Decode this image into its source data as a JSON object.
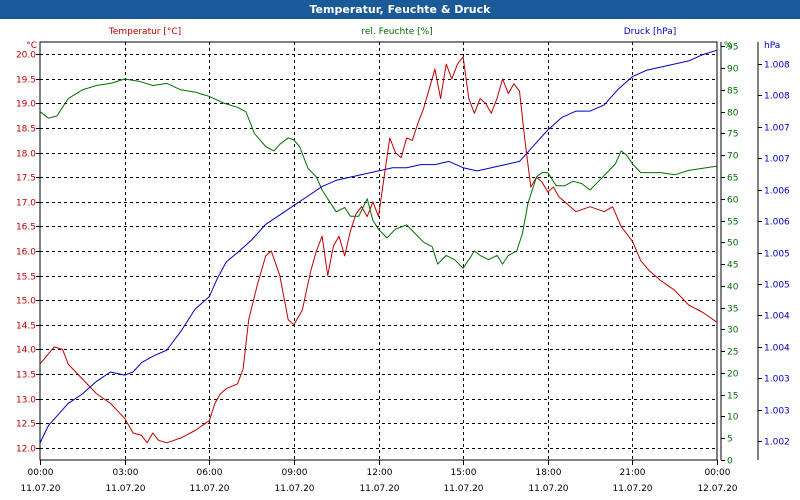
{
  "window": {
    "title": "Temperatur, Feuchte & Druck"
  },
  "chart_data": {
    "type": "line",
    "title": "Temperatur, Feuchte & Druck",
    "colors": {
      "temperature": "#c00000",
      "humidity": "#007000",
      "pressure": "#0000c0",
      "grid": "#000000",
      "title_bar": "#1a5a98"
    },
    "axes": {
      "left": {
        "label": "Temperatur [°C]",
        "unit": "°C",
        "range": [
          11.75,
          20.25
        ],
        "ticks": [
          "12.0",
          "12.5",
          "13.0",
          "13.5",
          "14.0",
          "14.5",
          "15.0",
          "15.5",
          "16.0",
          "16.5",
          "17.0",
          "17.5",
          "18.0",
          "18.5",
          "19.0",
          "19.5",
          "20.0"
        ]
      },
      "middle": {
        "label": "rel. Feuchte [%]",
        "unit": "%",
        "range": [
          0,
          96
        ],
        "ticks": [
          "0",
          "5",
          "10",
          "15",
          "20",
          "25",
          "30",
          "35",
          "40",
          "45",
          "50",
          "55",
          "60",
          "65",
          "70",
          "75",
          "80",
          "85",
          "90",
          "95"
        ]
      },
      "right": {
        "label": "Druck [hPa]",
        "unit": "hPa",
        "range": [
          1001.7,
          1008.35
        ],
        "ticks": [
          "1.002",
          "1.003",
          "1.003",
          "1.004",
          "1.004",
          "1.005",
          "1.005",
          "1.006",
          "1.006",
          "1.007",
          "1.007",
          "1.008",
          "1.008"
        ]
      },
      "x": {
        "range_hours": [
          0,
          24
        ],
        "tick_hours": [
          0,
          3,
          6,
          9,
          12,
          15,
          18,
          21,
          24
        ],
        "tick_labels": [
          [
            "00:00",
            "11.07.20"
          ],
          [
            "03:00",
            "11.07.20"
          ],
          [
            "06:00",
            "11.07.20"
          ],
          [
            "09:00",
            "11.07.20"
          ],
          [
            "12:00",
            "11.07.20"
          ],
          [
            "15:00",
            "11.07.20"
          ],
          [
            "18:00",
            "11.07.20"
          ],
          [
            "21:00",
            "11.07.20"
          ],
          [
            "00:00",
            "12.07.20"
          ]
        ]
      }
    },
    "grid": true,
    "series": [
      {
        "name": "Temperatur",
        "axis": "left",
        "color": "#c00000",
        "points": [
          [
            0,
            13.7
          ],
          [
            0.5,
            14.05
          ],
          [
            0.8,
            14.0
          ],
          [
            1.0,
            13.7
          ],
          [
            1.5,
            13.4
          ],
          [
            2.0,
            13.1
          ],
          [
            2.5,
            12.9
          ],
          [
            3.0,
            12.6
          ],
          [
            3.3,
            12.3
          ],
          [
            3.6,
            12.25
          ],
          [
            3.8,
            12.1
          ],
          [
            4.0,
            12.3
          ],
          [
            4.2,
            12.15
          ],
          [
            4.5,
            12.1
          ],
          [
            5.0,
            12.2
          ],
          [
            5.5,
            12.35
          ],
          [
            6.0,
            12.55
          ],
          [
            6.2,
            12.9
          ],
          [
            6.4,
            13.1
          ],
          [
            6.6,
            13.2
          ],
          [
            7.0,
            13.3
          ],
          [
            7.2,
            13.6
          ],
          [
            7.4,
            14.6
          ],
          [
            7.7,
            15.3
          ],
          [
            8.0,
            15.9
          ],
          [
            8.2,
            16.0
          ],
          [
            8.5,
            15.5
          ],
          [
            8.8,
            14.6
          ],
          [
            9.0,
            14.5
          ],
          [
            9.3,
            14.8
          ],
          [
            9.6,
            15.6
          ],
          [
            9.8,
            16.0
          ],
          [
            10.0,
            16.3
          ],
          [
            10.2,
            15.5
          ],
          [
            10.4,
            16.1
          ],
          [
            10.6,
            16.3
          ],
          [
            10.8,
            15.9
          ],
          [
            11.0,
            16.4
          ],
          [
            11.2,
            16.75
          ],
          [
            11.4,
            16.9
          ],
          [
            11.6,
            16.7
          ],
          [
            11.8,
            17.0
          ],
          [
            12.0,
            16.7
          ],
          [
            12.2,
            17.5
          ],
          [
            12.4,
            18.3
          ],
          [
            12.6,
            18.0
          ],
          [
            12.8,
            17.9
          ],
          [
            13.0,
            18.3
          ],
          [
            13.2,
            18.25
          ],
          [
            13.4,
            18.6
          ],
          [
            13.6,
            18.9
          ],
          [
            13.8,
            19.3
          ],
          [
            14.0,
            19.7
          ],
          [
            14.2,
            19.1
          ],
          [
            14.4,
            19.8
          ],
          [
            14.6,
            19.5
          ],
          [
            14.8,
            19.8
          ],
          [
            15.0,
            19.95
          ],
          [
            15.2,
            19.1
          ],
          [
            15.4,
            18.8
          ],
          [
            15.6,
            19.1
          ],
          [
            15.8,
            19.0
          ],
          [
            16.0,
            18.8
          ],
          [
            16.2,
            19.1
          ],
          [
            16.4,
            19.5
          ],
          [
            16.6,
            19.2
          ],
          [
            16.8,
            19.4
          ],
          [
            17.0,
            19.25
          ],
          [
            17.2,
            18.2
          ],
          [
            17.4,
            17.3
          ],
          [
            17.6,
            17.5
          ],
          [
            17.8,
            17.4
          ],
          [
            18.0,
            17.2
          ],
          [
            18.2,
            17.3
          ],
          [
            18.4,
            17.1
          ],
          [
            18.6,
            17.0
          ],
          [
            19.0,
            16.8
          ],
          [
            19.5,
            16.9
          ],
          [
            20.0,
            16.8
          ],
          [
            20.3,
            16.9
          ],
          [
            20.6,
            16.5
          ],
          [
            21.0,
            16.2
          ],
          [
            21.3,
            15.8
          ],
          [
            21.6,
            15.6
          ],
          [
            22.0,
            15.4
          ],
          [
            22.5,
            15.2
          ],
          [
            23.0,
            14.9
          ],
          [
            23.5,
            14.75
          ],
          [
            24.0,
            14.55
          ]
        ]
      },
      {
        "name": "rel. Feuchte",
        "axis": "middle",
        "color": "#007000",
        "points": [
          [
            0,
            80
          ],
          [
            0.3,
            78.5
          ],
          [
            0.6,
            79
          ],
          [
            1.0,
            83
          ],
          [
            1.5,
            85
          ],
          [
            2.0,
            86
          ],
          [
            2.5,
            86.5
          ],
          [
            3.0,
            87.5
          ],
          [
            3.5,
            87
          ],
          [
            4.0,
            86
          ],
          [
            4.5,
            86.5
          ],
          [
            5.0,
            85
          ],
          [
            5.5,
            84.5
          ],
          [
            6.0,
            83.5
          ],
          [
            6.5,
            82
          ],
          [
            7.0,
            81
          ],
          [
            7.3,
            80
          ],
          [
            7.6,
            75
          ],
          [
            8.0,
            72
          ],
          [
            8.3,
            71
          ],
          [
            8.5,
            72.5
          ],
          [
            8.8,
            74
          ],
          [
            9.0,
            73.5
          ],
          [
            9.2,
            72
          ],
          [
            9.5,
            67
          ],
          [
            9.8,
            65
          ],
          [
            10.0,
            62
          ],
          [
            10.2,
            60
          ],
          [
            10.5,
            57
          ],
          [
            10.8,
            58
          ],
          [
            11.0,
            56
          ],
          [
            11.3,
            56
          ],
          [
            11.6,
            60
          ],
          [
            11.8,
            55
          ],
          [
            12.0,
            53
          ],
          [
            12.3,
            51
          ],
          [
            12.6,
            53
          ],
          [
            13.0,
            54
          ],
          [
            13.3,
            52
          ],
          [
            13.6,
            50
          ],
          [
            13.9,
            49
          ],
          [
            14.1,
            45
          ],
          [
            14.4,
            47
          ],
          [
            14.7,
            46
          ],
          [
            15.0,
            44
          ],
          [
            15.2,
            46
          ],
          [
            15.4,
            48
          ],
          [
            15.6,
            47
          ],
          [
            15.9,
            46
          ],
          [
            16.2,
            47
          ],
          [
            16.4,
            45
          ],
          [
            16.6,
            47
          ],
          [
            16.9,
            48
          ],
          [
            17.1,
            52
          ],
          [
            17.3,
            59
          ],
          [
            17.6,
            65
          ],
          [
            17.8,
            66
          ],
          [
            18.0,
            66
          ],
          [
            18.3,
            63
          ],
          [
            18.6,
            63
          ],
          [
            18.9,
            64
          ],
          [
            19.2,
            63.5
          ],
          [
            19.5,
            62
          ],
          [
            19.8,
            64
          ],
          [
            20.1,
            66
          ],
          [
            20.4,
            68
          ],
          [
            20.6,
            71
          ],
          [
            20.8,
            70
          ],
          [
            21.0,
            68
          ],
          [
            21.3,
            66
          ],
          [
            21.6,
            66
          ],
          [
            22.0,
            66
          ],
          [
            22.5,
            65.5
          ],
          [
            23.0,
            66.5
          ],
          [
            23.5,
            67
          ],
          [
            24.0,
            67.5
          ]
        ]
      },
      {
        "name": "Druck",
        "axis": "right",
        "color": "#0000c0",
        "points": [
          [
            0,
            1001.97
          ],
          [
            0.3,
            1002.25
          ],
          [
            0.7,
            1002.45
          ],
          [
            1.0,
            1002.6
          ],
          [
            1.5,
            1002.75
          ],
          [
            2.0,
            1002.95
          ],
          [
            2.5,
            1003.1
          ],
          [
            3.0,
            1003.05
          ],
          [
            3.3,
            1003.1
          ],
          [
            3.6,
            1003.25
          ],
          [
            4.0,
            1003.35
          ],
          [
            4.5,
            1003.45
          ],
          [
            5.0,
            1003.75
          ],
          [
            5.5,
            1004.1
          ],
          [
            6.0,
            1004.3
          ],
          [
            6.3,
            1004.6
          ],
          [
            6.6,
            1004.85
          ],
          [
            7.0,
            1005.0
          ],
          [
            7.5,
            1005.2
          ],
          [
            8.0,
            1005.45
          ],
          [
            8.5,
            1005.6
          ],
          [
            9.0,
            1005.75
          ],
          [
            9.5,
            1005.9
          ],
          [
            10.0,
            1006.05
          ],
          [
            10.5,
            1006.15
          ],
          [
            11.0,
            1006.2
          ],
          [
            11.5,
            1006.25
          ],
          [
            12.0,
            1006.3
          ],
          [
            12.5,
            1006.35
          ],
          [
            13.0,
            1006.35
          ],
          [
            13.5,
            1006.4
          ],
          [
            14.0,
            1006.4
          ],
          [
            14.5,
            1006.45
          ],
          [
            15.0,
            1006.35
          ],
          [
            15.5,
            1006.3
          ],
          [
            16.0,
            1006.35
          ],
          [
            16.5,
            1006.4
          ],
          [
            17.0,
            1006.45
          ],
          [
            17.5,
            1006.7
          ],
          [
            18.0,
            1006.95
          ],
          [
            18.5,
            1007.15
          ],
          [
            19.0,
            1007.25
          ],
          [
            19.5,
            1007.25
          ],
          [
            20.0,
            1007.35
          ],
          [
            20.5,
            1007.6
          ],
          [
            21.0,
            1007.8
          ],
          [
            21.5,
            1007.9
          ],
          [
            22.0,
            1007.95
          ],
          [
            22.5,
            1008.0
          ],
          [
            23.0,
            1008.05
          ],
          [
            23.5,
            1008.15
          ],
          [
            24.0,
            1008.22
          ]
        ]
      }
    ]
  }
}
